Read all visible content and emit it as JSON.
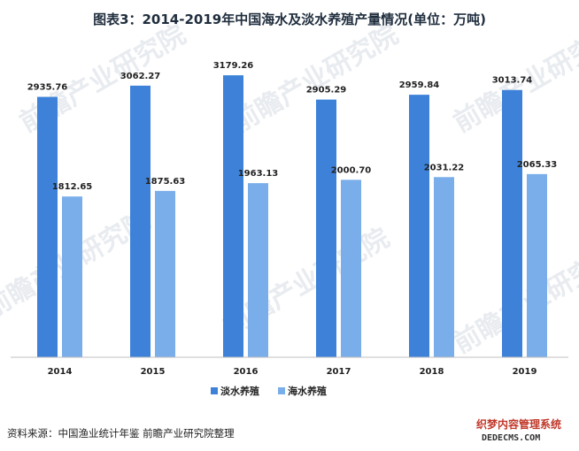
{
  "chart_data": {
    "type": "bar",
    "title": "图表3：2014-2019年中国海水及淡水养殖产量情况(单位：万吨)",
    "categories": [
      "2014",
      "2015",
      "2016",
      "2017",
      "2018",
      "2019"
    ],
    "series": [
      {
        "name": "淡水养殖",
        "color": "#3d82d8",
        "values": [
          2935.76,
          3062.27,
          3179.26,
          2905.29,
          2959.84,
          3013.74
        ]
      },
      {
        "name": "海水养殖",
        "color": "#7aaeea",
        "values": [
          1812.65,
          1875.63,
          1963.13,
          2000.7,
          2031.22,
          2065.33
        ]
      }
    ],
    "ylim": [
      0,
      3350
    ],
    "grid": false,
    "legend_position": "bottom"
  },
  "source": "资料来源：中国渔业统计年鉴 前瞻产业研究院整理",
  "watermark": "前瞻产业研究院",
  "stamp": {
    "line1": "织梦内容管理系统",
    "line2": "DEDECMS.COM"
  }
}
